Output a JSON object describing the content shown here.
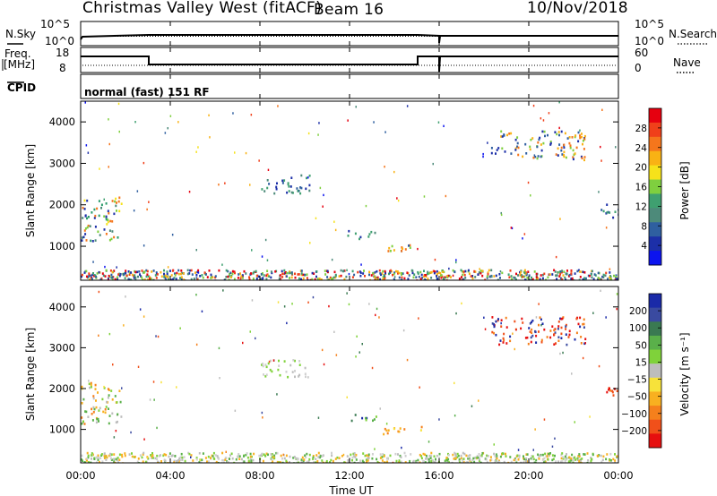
{
  "header": {
    "title": "Christmas Valley West (fitACF)",
    "beam": "Beam 16",
    "date": "10/Nov/2018"
  },
  "panel_labels": {
    "nsky": "N.Sky",
    "nsearch": "N.Search",
    "freq": "Freq.",
    "freq_unit": "[MHz]",
    "nave": "Nave",
    "cpid": "CPID",
    "mode": "normal (fast) 151 RF"
  },
  "noise_axis": {
    "top_left": "10^5",
    "bottom_left": "10^0",
    "top_right": "10^5",
    "bottom_right": "10^0"
  },
  "freq_axis": {
    "left_ticks": [
      "18",
      "8"
    ],
    "right_ticks": [
      "60",
      "0"
    ]
  },
  "chart_data": [
    {
      "type": "heatmap",
      "title": "",
      "ylabel": "Slant Range [km]",
      "xlabel": "Time UT",
      "ylim": [
        180,
        4500
      ],
      "yticks": [
        "1000",
        "2000",
        "3000",
        "4000"
      ],
      "xticks": [
        "00:00",
        "04:00",
        "08:00",
        "12:00",
        "16:00",
        "20:00",
        "00:00"
      ],
      "colorbar": {
        "label": "Power [dB]",
        "ticks": [
          "28",
          "24",
          "20",
          "16",
          "12",
          "8",
          "4"
        ],
        "colors": [
          "#e6000f",
          "#f0401a",
          "#f5761c",
          "#f9b214",
          "#f6e21a",
          "#7fcf3f",
          "#3fa070",
          "#4d8a7a",
          "#2f5fa0",
          "#1c2fa8",
          "#0c14ef"
        ]
      },
      "features": [
        {
          "t0": 0.0,
          "t1": 1.8,
          "r0": 1150,
          "r1": 2200,
          "level": "high"
        },
        {
          "t0": 8.0,
          "t1": 10.2,
          "r0": 2300,
          "r1": 2750,
          "level": "low"
        },
        {
          "t0": 11.8,
          "t1": 13.2,
          "r0": 1200,
          "r1": 1400,
          "level": "low"
        },
        {
          "t0": 13.2,
          "t1": 15.2,
          "r0": 900,
          "r1": 1100,
          "level": "mid"
        },
        {
          "t0": 18.3,
          "t1": 22.5,
          "r0": 3100,
          "r1": 3800,
          "level": "mid"
        },
        {
          "t0": 23.2,
          "t1": 24.0,
          "r0": 1700,
          "r1": 2100,
          "level": "low"
        },
        {
          "t0": 0.0,
          "t1": 24.0,
          "r0": 180,
          "r1": 450,
          "level": "mixed"
        }
      ]
    },
    {
      "type": "heatmap",
      "title": "",
      "ylabel": "Slant Range [km]",
      "xlabel": "Time UT",
      "ylim": [
        180,
        4500
      ],
      "yticks": [
        "1000",
        "2000",
        "3000",
        "4000"
      ],
      "xticks": [
        "00:00",
        "04:00",
        "08:00",
        "12:00",
        "16:00",
        "20:00",
        "00:00"
      ],
      "colorbar": {
        "label": "Velocity [m s⁻¹]",
        "ticks": [
          "200",
          "100",
          "50",
          "15",
          "−15",
          "−50",
          "−100",
          "−200"
        ],
        "colors": [
          "#1a2aa8",
          "#3a4aa0",
          "#3a7a52",
          "#5ab04a",
          "#7fd23a",
          "#bdbdbd",
          "#f7e23a",
          "#f8b020",
          "#f5801c",
          "#f0501a",
          "#e60f0f"
        ]
      },
      "features": [
        {
          "t0": 0.0,
          "t1": 1.8,
          "r0": 1150,
          "r1": 2200,
          "level": "neg-mixed"
        },
        {
          "t0": 8.0,
          "t1": 10.2,
          "r0": 2300,
          "r1": 2750,
          "level": "gray"
        },
        {
          "t0": 11.8,
          "t1": 13.2,
          "r0": 1200,
          "r1": 1400,
          "level": "pos"
        },
        {
          "t0": 13.2,
          "t1": 15.2,
          "r0": 900,
          "r1": 1100,
          "level": "neg"
        },
        {
          "t0": 18.3,
          "t1": 22.5,
          "r0": 3100,
          "r1": 3800,
          "level": "strong"
        },
        {
          "t0": 23.2,
          "t1": 24.0,
          "r0": 1700,
          "r1": 2100,
          "level": "neg-strong"
        },
        {
          "t0": 0.0,
          "t1": 24.0,
          "r0": 180,
          "r1": 450,
          "level": "ground"
        }
      ]
    }
  ]
}
